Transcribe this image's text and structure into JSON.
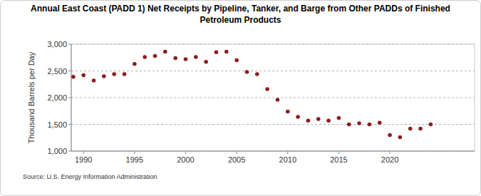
{
  "chart_data": {
    "type": "scatter",
    "title": "Annual East Coast (PADD 1) Net Receipts by Pipeline, Tanker, and Barge from Other PADDs of Finished Petroleum Products",
    "y_label": "Thousand Barrels per Day",
    "source": "Source: U.S. Energy Information Administration",
    "x": [
      1989,
      1990,
      1991,
      1992,
      1993,
      1994,
      1995,
      1996,
      1997,
      1998,
      1999,
      2000,
      2001,
      2002,
      2003,
      2004,
      2005,
      2006,
      2007,
      2008,
      2009,
      2010,
      2011,
      2012,
      2013,
      2014,
      2015,
      2016,
      2017,
      2018,
      2019,
      2020,
      2021,
      2022,
      2023,
      2024
    ],
    "values": [
      2390,
      2420,
      2320,
      2400,
      2440,
      2440,
      2630,
      2760,
      2780,
      2860,
      2740,
      2720,
      2760,
      2670,
      2850,
      2860,
      2700,
      2480,
      2440,
      2160,
      1960,
      1740,
      1640,
      1570,
      1600,
      1570,
      1620,
      1500,
      1520,
      1500,
      1530,
      1300,
      1260,
      1420,
      1420,
      1500
    ],
    "color": "#8b1e1e",
    "marker": "circle",
    "xlim": [
      1988.8,
      2028.3
    ],
    "xticks": [
      1990,
      1995,
      2000,
      2005,
      2010,
      2015,
      2020
    ],
    "ylim": [
      1000,
      3000
    ],
    "yticks": [
      {
        "value": 1000,
        "label": "1,000"
      },
      {
        "value": 1500,
        "label": "1,500"
      },
      {
        "value": 2000,
        "label": "2,000"
      },
      {
        "value": 2500,
        "label": "2,500"
      },
      {
        "value": 3000,
        "label": "3,000"
      }
    ],
    "grid": true
  }
}
